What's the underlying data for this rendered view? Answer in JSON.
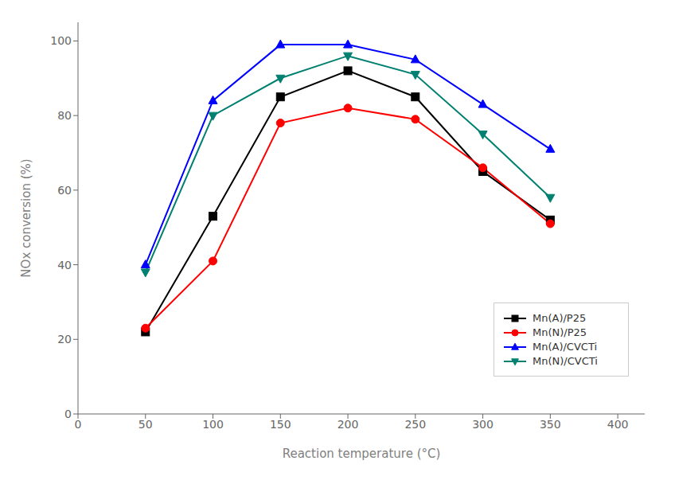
{
  "chart_data": {
    "type": "line",
    "xlabel": "Reaction temperature (°C)",
    "ylabel": "NOx conversion (%)",
    "x": [
      50,
      100,
      150,
      200,
      250,
      300,
      350
    ],
    "series": [
      {
        "name": "Mn(A)/P25",
        "color": "#000000",
        "marker": "square",
        "values": [
          22,
          53,
          85,
          92,
          85,
          65,
          52
        ]
      },
      {
        "name": "Mn(N)/P25",
        "color": "#ff0000",
        "marker": "circle",
        "values": [
          23,
          41,
          78,
          82,
          79,
          66,
          51
        ]
      },
      {
        "name": "Mn(A)/CVCTi",
        "color": "#0000ff",
        "marker": "triangle_up",
        "values": [
          40,
          84,
          99,
          99,
          95,
          83,
          71
        ]
      },
      {
        "name": "Mn(N)/CVCTi",
        "color": "#008070",
        "marker": "triangle_down",
        "values": [
          38,
          80,
          90,
          96,
          91,
          75,
          58
        ]
      }
    ],
    "xlim": [
      0,
      420
    ],
    "ylim": [
      0,
      105
    ],
    "xticks": [
      0,
      50,
      100,
      150,
      200,
      250,
      300,
      350,
      400
    ],
    "yticks": [
      0,
      20,
      40,
      60,
      80,
      100
    ],
    "grid": false,
    "legend": "lower right"
  }
}
